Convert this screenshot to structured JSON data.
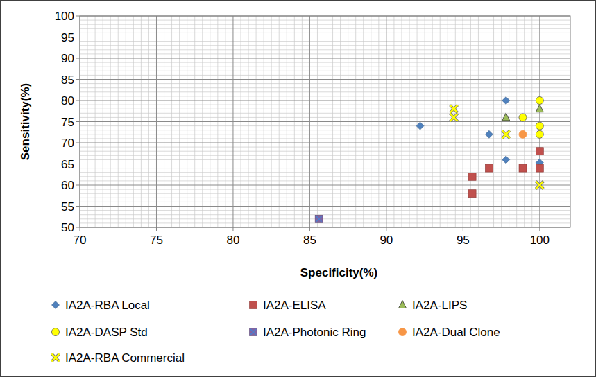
{
  "chart_data": {
    "type": "scatter",
    "x_label": "Specificity(%)",
    "y_label": "Sensitivity(%)",
    "xlim": [
      70,
      102
    ],
    "xticks": [
      70,
      75,
      80,
      85,
      90,
      95,
      100
    ],
    "ylim": [
      50,
      100
    ],
    "yticks": [
      50,
      55,
      60,
      65,
      70,
      75,
      80,
      85,
      90,
      95,
      100
    ],
    "grid": true,
    "legend": "bottom",
    "series": [
      {
        "name": "IA2A-RBA Local",
        "color": "#4f81bd",
        "marker": "diamond",
        "x": [
          92.2,
          96.7,
          97.8,
          97.8,
          100
        ],
        "values": [
          74,
          72,
          80,
          66,
          65.3
        ]
      },
      {
        "name": "IA2A-ELISA",
        "color": "#c0504d",
        "marker": "square",
        "x": [
          95.6,
          95.6,
          96.7,
          98.9,
          100,
          100
        ],
        "values": [
          62,
          58,
          64,
          64,
          68,
          64
        ]
      },
      {
        "name": "IA2A-LIPS",
        "color": "#9bbb59",
        "marker": "triangle",
        "x": [
          97.8,
          100
        ],
        "values": [
          76,
          78
        ]
      },
      {
        "name": "IA2A-DASP Std",
        "color": "#ffff00",
        "marker": "circle",
        "x": [
          98.9,
          100,
          100,
          100
        ],
        "values": [
          76,
          80,
          74,
          72
        ]
      },
      {
        "name": "IA2A-Photonic Ring",
        "color": "#8064a2",
        "marker": "square-x",
        "x": [
          85.6
        ],
        "values": [
          52
        ]
      },
      {
        "name": "IA2A-Dual Clone",
        "color": "#f79646",
        "marker": "circle",
        "x": [
          98.9
        ],
        "values": [
          72
        ]
      },
      {
        "name": "IA2A-RBA Commercial",
        "color": "#ffff00",
        "marker": "x",
        "x": [
          94.4,
          94.4,
          97.8,
          100
        ],
        "values": [
          78,
          76,
          72,
          60
        ]
      }
    ]
  }
}
